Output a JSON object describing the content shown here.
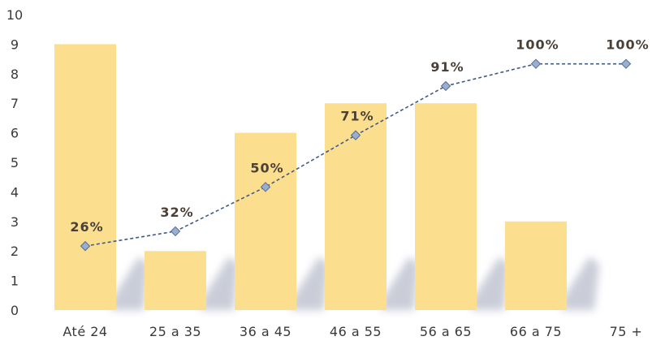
{
  "chart_data": {
    "type": "bar",
    "categories": [
      "Até 24",
      "25 a 35",
      "36 a 45",
      "46 a 55",
      "56 a 65",
      "66 a 75",
      "75 +"
    ],
    "series": [
      {
        "type": "bar",
        "values": [
          9,
          2,
          6,
          7,
          7,
          3,
          0
        ]
      },
      {
        "type": "line",
        "values": [
          26,
          32,
          50,
          71,
          91,
          100,
          100
        ],
        "labels": [
          "26%",
          "32%",
          "50%",
          "71%",
          "91%",
          "100%",
          "100%"
        ]
      }
    ],
    "y_ticks": [
      "0",
      "1",
      "2",
      "3",
      "4",
      "5",
      "6",
      "7",
      "8",
      "9",
      "10"
    ],
    "ylim": [
      0,
      10
    ],
    "y2lim": [
      0,
      120
    ],
    "grid": false,
    "colors": {
      "bar": "#fcdf8e",
      "bar_shadow": "#aeb3c4",
      "line": "#3f5a8a",
      "marker": "#9aaed2",
      "marker_stroke": "#556a90"
    }
  }
}
